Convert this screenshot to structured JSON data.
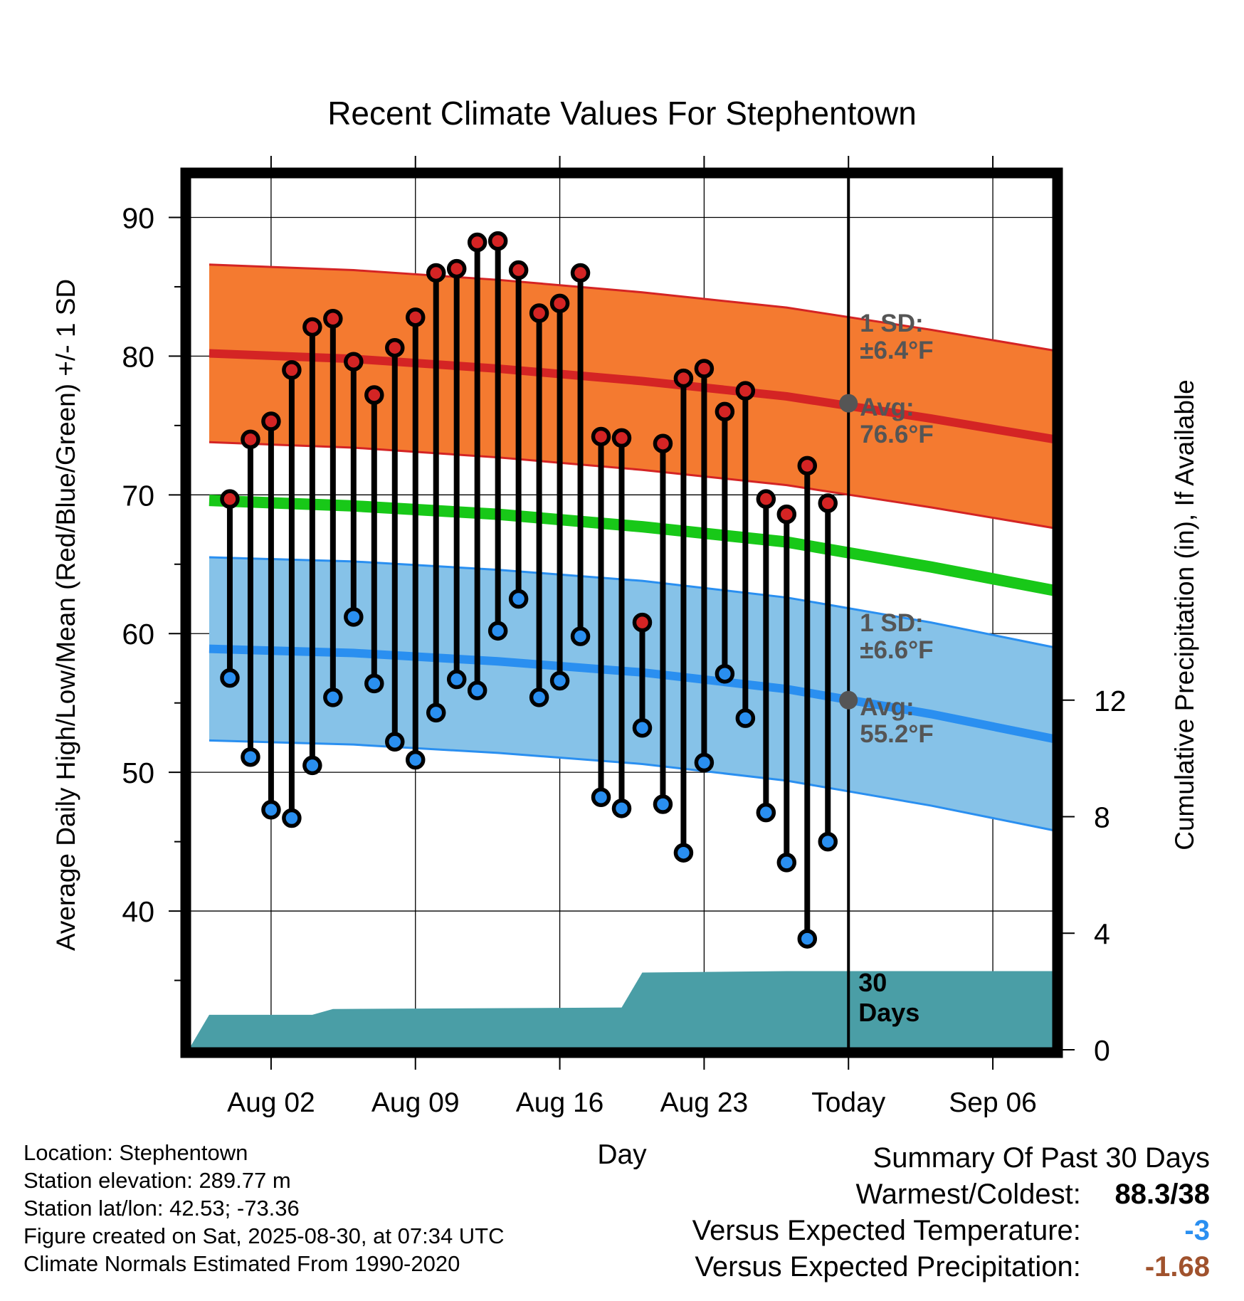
{
  "chart_data": {
    "type": "line",
    "title": "Recent Climate Values For Stephentown",
    "xlabel": "Day",
    "ylabel": "Average Daily High/Low/Mean (Red/Blue/Green) +/- 1 SD",
    "y2label": "Cumulative Precipitation (in), If Available",
    "ylim": [
      30,
      93
    ],
    "y2lim": [
      0,
      30
    ],
    "yticks": [
      "40",
      "50",
      "60",
      "70",
      "80",
      "90"
    ],
    "y2ticks": [
      "0",
      "4",
      "8",
      "12"
    ],
    "xlim": [
      "Jul 29",
      "Sep 09"
    ],
    "xticks": [
      {
        "date": "Aug 02",
        "label": "Aug 02"
      },
      {
        "date": "Aug 09",
        "label": "Aug 09"
      },
      {
        "date": "Aug 16",
        "label": "Aug 16"
      },
      {
        "date": "Aug 23",
        "label": "Aug 23"
      },
      {
        "date": "Aug 30",
        "label": "Today"
      },
      {
        "date": "Sep 06",
        "label": "Sep 06"
      }
    ],
    "grid": true,
    "today_date": "Aug 30",
    "days_label": "30 Days",
    "colors": {
      "high": "#d42424",
      "low": "#2a8ff0",
      "mean": "#18c818",
      "high_band": "#f47a30",
      "low_band": "#86c2e8",
      "precip": "#4a9ea6",
      "annotation": "#555555"
    },
    "annotations": {
      "high_sd_label": "1 SD:",
      "high_sd_value": "±6.4°F",
      "high_avg_label": "Avg:",
      "high_avg_value": "76.6°F",
      "low_sd_label": "1 SD:",
      "low_sd_value": "±6.6°F",
      "low_avg_label": "Avg:",
      "low_avg_value": "55.2°F"
    },
    "normals": {
      "dates": [
        "Jul 30",
        "Aug 06",
        "Aug 13",
        "Aug 20",
        "Aug 27",
        "Sep 03",
        "Sep 09"
      ],
      "high_avg": [
        80.2,
        79.8,
        79.1,
        78.2,
        77.1,
        75.5,
        74.0
      ],
      "high_sd": 6.4,
      "low_avg": [
        58.9,
        58.6,
        58.0,
        57.2,
        56.0,
        54.2,
        52.4
      ],
      "low_sd": 6.6,
      "mean_avg": [
        69.6,
        69.2,
        68.6,
        67.7,
        66.6,
        64.8,
        63.1
      ]
    },
    "series": [
      {
        "name": "High",
        "dates": [
          "Jul 31",
          "Aug 01",
          "Aug 02",
          "Aug 03",
          "Aug 04",
          "Aug 05",
          "Aug 06",
          "Aug 07",
          "Aug 08",
          "Aug 09",
          "Aug 10",
          "Aug 11",
          "Aug 12",
          "Aug 13",
          "Aug 14",
          "Aug 15",
          "Aug 16",
          "Aug 17",
          "Aug 18",
          "Aug 19",
          "Aug 20",
          "Aug 21",
          "Aug 22",
          "Aug 23",
          "Aug 24",
          "Aug 25",
          "Aug 26",
          "Aug 27",
          "Aug 28",
          "Aug 29"
        ],
        "values": [
          69.7,
          74.0,
          75.3,
          79.0,
          82.1,
          82.7,
          79.6,
          77.2,
          80.6,
          82.8,
          86.0,
          86.3,
          88.2,
          88.3,
          86.2,
          83.1,
          83.8,
          86.0,
          74.2,
          74.1,
          60.8,
          73.7,
          78.4,
          79.1,
          76.0,
          77.5,
          69.7,
          68.6,
          72.1,
          69.4
        ]
      },
      {
        "name": "Low",
        "dates": [
          "Jul 31",
          "Aug 01",
          "Aug 02",
          "Aug 03",
          "Aug 04",
          "Aug 05",
          "Aug 06",
          "Aug 07",
          "Aug 08",
          "Aug 09",
          "Aug 10",
          "Aug 11",
          "Aug 12",
          "Aug 13",
          "Aug 14",
          "Aug 15",
          "Aug 16",
          "Aug 17",
          "Aug 18",
          "Aug 19",
          "Aug 20",
          "Aug 21",
          "Aug 22",
          "Aug 23",
          "Aug 24",
          "Aug 25",
          "Aug 26",
          "Aug 27",
          "Aug 28",
          "Aug 29"
        ],
        "values": [
          56.8,
          51.1,
          47.3,
          46.7,
          50.5,
          55.4,
          61.2,
          56.4,
          52.2,
          50.9,
          54.3,
          56.7,
          55.9,
          60.2,
          62.5,
          55.4,
          56.6,
          59.8,
          48.2,
          47.4,
          53.2,
          47.7,
          44.2,
          50.7,
          57.1,
          53.9,
          47.1,
          43.5,
          38.0,
          45.0
        ]
      }
    ],
    "precip": {
      "dates": [
        "Jul 29",
        "Jul 30",
        "Aug 04",
        "Aug 05",
        "Aug 19",
        "Aug 20",
        "Aug 27",
        "Sep 09"
      ],
      "values": [
        0.0,
        1.2,
        1.2,
        1.4,
        1.45,
        2.65,
        2.7,
        2.7
      ]
    }
  },
  "footer": {
    "location": "Location: Stephentown",
    "elevation": "Station elevation: 289.77 m",
    "latlon": "Station lat/lon: 42.53; -73.36",
    "created": "Figure created on Sat, 2025-08-30, at 07:34 UTC",
    "normals": "Climate Normals Estimated From 1990-2020"
  },
  "summary": {
    "title": "Summary Of Past 30 Days",
    "warmest_coldest_label": "Warmest/Coldest:",
    "warmest_coldest_value": "88.3/38",
    "temp_label": "Versus Expected Temperature:",
    "temp_value": "-3",
    "temp_color": "#2a8ff0",
    "precip_label": "Versus Expected Precipitation:",
    "precip_value": "-1.68",
    "precip_color": "#a0522d"
  }
}
